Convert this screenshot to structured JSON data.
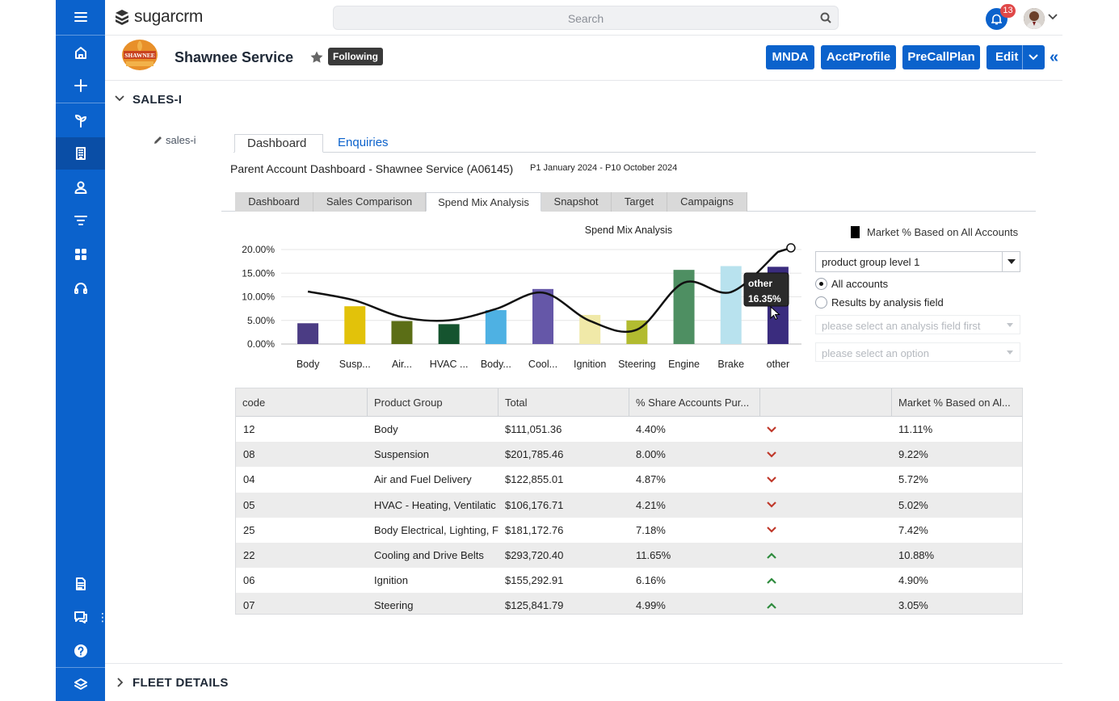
{
  "app": {
    "logo_text": "sugarcrm",
    "search_placeholder": "Search",
    "notification_count": "13"
  },
  "nav": {
    "items": [
      "menu",
      "home",
      "create",
      "opportunities",
      "accounts",
      "contacts",
      "filters",
      "modules",
      "support",
      "notes",
      "chat",
      "help",
      "layers"
    ]
  },
  "record": {
    "title": "Shawnee Service",
    "logo_text": "SHAWNEE",
    "following_label": "Following",
    "buttons": [
      "MNDA",
      "AcctProfile",
      "PreCallPlan",
      "Edit"
    ]
  },
  "panels": {
    "sales_i": "SALES-I",
    "fleet": "FLEET DETAILS"
  },
  "dashlet": {
    "edit_label": "sales-i",
    "tabs": [
      "Dashboard",
      "Enquiries"
    ],
    "title": "Parent Account Dashboard - Shawnee Service (A06145)",
    "period": "P1 January 2024 - P10 October 2024",
    "sub_tabs": [
      "Dashboard",
      "Sales Comparison",
      "Spend Mix Analysis",
      "Snapshot",
      "Target",
      "Campaigns"
    ],
    "legend_label": "Market % Based on All Accounts",
    "product_group_select": "product group level 1",
    "radio_all": "All accounts",
    "radio_field": "Results by analysis field",
    "analysis_placeholder": "please select an analysis field first",
    "option_placeholder": "please select an option"
  },
  "chart_data": {
    "type": "bar",
    "title": "Spend Mix Analysis",
    "categories": [
      "Body",
      "Susp...",
      "Air...",
      "HVAC ...",
      "Body...",
      "Cool...",
      "Ignition",
      "Steering",
      "Engine",
      "Brake",
      "other"
    ],
    "series": [
      {
        "values": [
          4.4,
          8.0,
          4.87,
          4.21,
          7.18,
          11.65,
          6.16,
          4.99,
          15.7,
          16.5,
          16.35
        ]
      },
      {
        "name": "Market % Based on All Accounts",
        "type": "line",
        "values": [
          11.11,
          9.22,
          5.72,
          5.02,
          7.42,
          10.88,
          4.9,
          3.05,
          13.0,
          11.0,
          19.5
        ]
      }
    ],
    "bar_colors": [
      "#4b3c84",
      "#e2c20a",
      "#5b6e16",
      "#15542f",
      "#4eb1e3",
      "#6557a8",
      "#f0e9a8",
      "#b2bb30",
      "#4e8f62",
      "#b8e2ee",
      "#3a2c7e"
    ],
    "yticks": [
      "0.00%",
      "5.00%",
      "10.00%",
      "15.00%",
      "20.00%"
    ],
    "ylim": [
      0,
      20
    ],
    "tooltip": {
      "label": "other",
      "value": "16.35%"
    }
  },
  "table": {
    "columns": [
      "code",
      "Product Group",
      "Total",
      "% Share Accounts Pur...",
      "",
      "Market % Based on Al..."
    ],
    "rows": [
      {
        "code": "12",
        "group": "Body",
        "total": "$111,051.36",
        "share": "4.40%",
        "trend": "down",
        "market": "11.11%"
      },
      {
        "code": "08",
        "group": "Suspension",
        "total": "$201,785.46",
        "share": "8.00%",
        "trend": "down",
        "market": "9.22%"
      },
      {
        "code": "04",
        "group": "Air and Fuel Delivery",
        "total": "$122,855.01",
        "share": "4.87%",
        "trend": "down",
        "market": "5.72%"
      },
      {
        "code": "05",
        "group": "HVAC - Heating, Ventilatic",
        "total": "$106,176.71",
        "share": "4.21%",
        "trend": "down",
        "market": "5.02%"
      },
      {
        "code": "25",
        "group": "Body Electrical, Lighting, F",
        "total": "$181,172.76",
        "share": "7.18%",
        "trend": "down",
        "market": "7.42%"
      },
      {
        "code": "22",
        "group": "Cooling and Drive Belts",
        "total": "$293,720.40",
        "share": "11.65%",
        "trend": "up",
        "market": "10.88%"
      },
      {
        "code": "06",
        "group": "Ignition",
        "total": "$155,292.91",
        "share": "6.16%",
        "trend": "up",
        "market": "4.90%"
      },
      {
        "code": "07",
        "group": "Steering",
        "total": "$125,841.79",
        "share": "4.99%",
        "trend": "up",
        "market": "3.05%"
      }
    ]
  },
  "colors": {
    "brand": "#0b62cc",
    "down": "#c0392b",
    "up": "#2e8b3d"
  }
}
